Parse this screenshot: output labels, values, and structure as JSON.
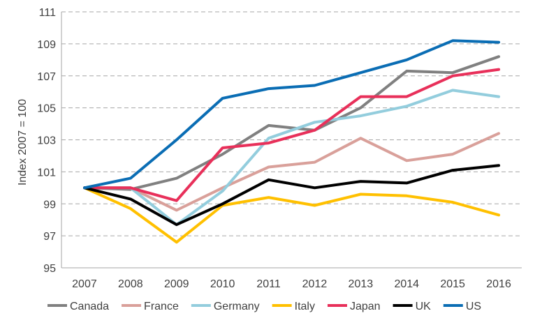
{
  "chart_data": {
    "type": "line",
    "ylabel": "Index 2007 = 100",
    "xlabel": "",
    "title": "",
    "ylim": [
      95,
      111
    ],
    "yticks": [
      95,
      97,
      99,
      101,
      103,
      105,
      107,
      109,
      111
    ],
    "grid": "horizontal dashed",
    "legend_position": "bottom",
    "x": [
      "2007",
      "2008",
      "2009",
      "2010",
      "2011",
      "2012",
      "2013",
      "2014",
      "2015",
      "2016"
    ],
    "series": [
      {
        "name": "Canada",
        "color": "#808080",
        "values": [
          100,
          99.9,
          100.6,
          102.1,
          103.9,
          103.6,
          105.0,
          107.3,
          107.2,
          108.2
        ]
      },
      {
        "name": "France",
        "color": "#d9a09a",
        "values": [
          100,
          100.0,
          98.6,
          100.0,
          101.3,
          101.6,
          103.1,
          101.7,
          102.1,
          103.4
        ]
      },
      {
        "name": "Germany",
        "color": "#93cddd",
        "values": [
          100,
          100.0,
          97.7,
          99.8,
          103.1,
          104.1,
          104.5,
          105.1,
          106.1,
          105.7
        ]
      },
      {
        "name": "Italy",
        "color": "#ffc000",
        "values": [
          100,
          98.7,
          96.6,
          98.9,
          99.4,
          98.9,
          99.6,
          99.5,
          99.1,
          98.3
        ]
      },
      {
        "name": "Japan",
        "color": "#e8305a",
        "values": [
          100,
          100.0,
          99.2,
          102.5,
          102.8,
          103.6,
          105.7,
          105.7,
          107.0,
          107.4
        ]
      },
      {
        "name": "UK",
        "color": "#000000",
        "values": [
          100,
          99.3,
          97.7,
          99.0,
          100.5,
          100.0,
          100.4,
          100.3,
          101.1,
          101.4
        ]
      },
      {
        "name": "US",
        "color": "#0a6db4",
        "values": [
          100,
          100.6,
          103.0,
          105.6,
          106.2,
          106.4,
          107.2,
          108.0,
          109.2,
          109.1
        ]
      }
    ]
  }
}
